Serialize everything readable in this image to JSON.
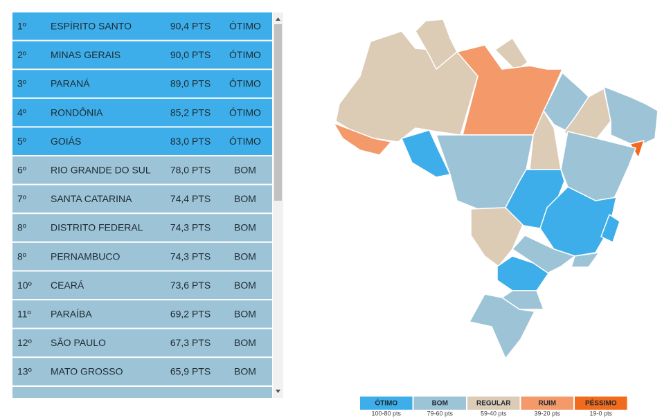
{
  "table": {
    "rows": [
      [
        "1º",
        "ESPÍRITO SANTO",
        "90,4 PTS",
        "ÓTIMO"
      ],
      [
        "2º",
        "MINAS GERAIS",
        "90,0 PTS",
        "ÓTIMO"
      ],
      [
        "3º",
        "PARANÁ",
        "89,0 PTS",
        "ÓTIMO"
      ],
      [
        "4º",
        "RONDÔNIA",
        "85,2 PTS",
        "ÓTIMO"
      ],
      [
        "5º",
        "GOIÁS",
        "83,0 PTS",
        "ÓTIMO"
      ],
      [
        "6º",
        "RIO GRANDE DO SUL",
        "78,0 PTS",
        "BOM"
      ],
      [
        "7º",
        "SANTA CATARINA",
        "74,4 PTS",
        "BOM"
      ],
      [
        "8º",
        "DISTRITO FEDERAL",
        "74,3 PTS",
        "BOM"
      ],
      [
        "8º",
        "PERNAMBUCO",
        "74,3 PTS",
        "BOM"
      ],
      [
        "10º",
        "CEARÁ",
        "73,6 PTS",
        "BOM"
      ],
      [
        "11º",
        "PARAÍBA",
        "69,2 PTS",
        "BOM"
      ],
      [
        "12º",
        "SÃO PAULO",
        "67,3 PTS",
        "BOM"
      ],
      [
        "13º",
        "MATO GROSSO",
        "65,9 PTS",
        "BOM"
      ]
    ]
  },
  "legend": {
    "items": [
      {
        "label": "ÓTIMO",
        "range": "100-80 pts",
        "color": "#3daee9"
      },
      {
        "label": "BOM",
        "range": "79-60 pts",
        "color": "#9dc3d6"
      },
      {
        "label": "REGULAR",
        "range": "59-40 pts",
        "color": "#dccbb5"
      },
      {
        "label": "RUIM",
        "range": "39-20 pts",
        "color": "#f4996a"
      },
      {
        "label": "PÉSSIMO",
        "range": "19-0 pts",
        "color": "#f26a1b"
      }
    ]
  }
}
